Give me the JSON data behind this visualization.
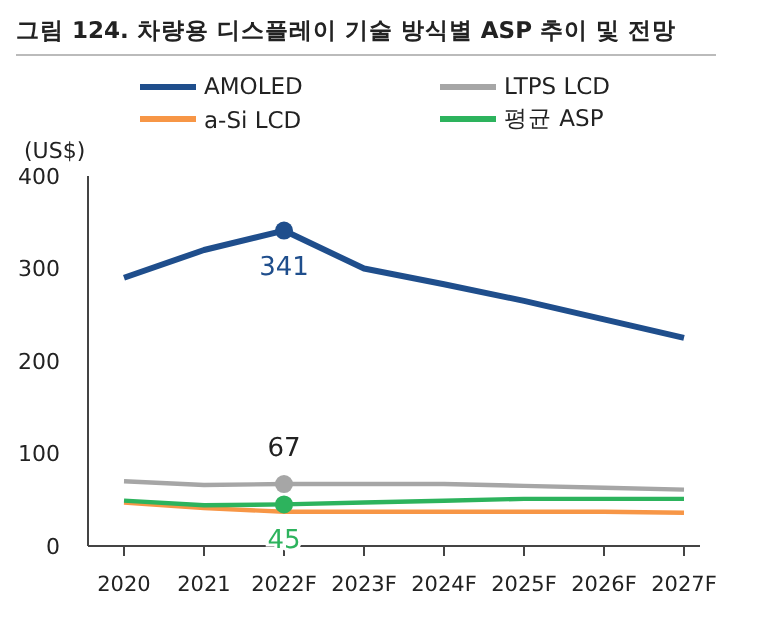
{
  "chart_data": {
    "type": "line",
    "title": "그림 124. 차량용 디스플레이 기술 방식별 ASP 추이 및 전망",
    "ylabel": "(US$)",
    "categories": [
      "2020",
      "2021",
      "2022F",
      "2023F",
      "2024F",
      "2025F",
      "2026F",
      "2027F"
    ],
    "series": [
      {
        "name": "AMOLED",
        "color": "#1f4e8c",
        "values": [
          290,
          320,
          341,
          300,
          283,
          265,
          245,
          225
        ],
        "value_labels": [
          null,
          null,
          "341",
          null,
          null,
          null,
          null,
          null
        ]
      },
      {
        "name": "LTPS LCD",
        "color": "#a6a6a6",
        "values": [
          70,
          66,
          67,
          67,
          67,
          65,
          63,
          61
        ],
        "value_labels": [
          null,
          null,
          "67",
          null,
          null,
          null,
          null,
          null
        ]
      },
      {
        "name": "a-Si LCD",
        "color": "#f79646",
        "values": [
          47,
          41,
          37,
          37,
          37,
          37,
          37,
          36
        ]
      },
      {
        "name": "평균 ASP",
        "color": "#2db35d",
        "values": [
          49,
          44,
          45,
          47,
          49,
          51,
          51,
          51
        ],
        "value_labels": [
          null,
          null,
          "45",
          null,
          null,
          null,
          null,
          null
        ]
      }
    ],
    "ylim": [
      0,
      400
    ],
    "yticks": [
      0,
      100,
      200,
      300,
      400
    ],
    "grid": false,
    "legend": "top"
  }
}
